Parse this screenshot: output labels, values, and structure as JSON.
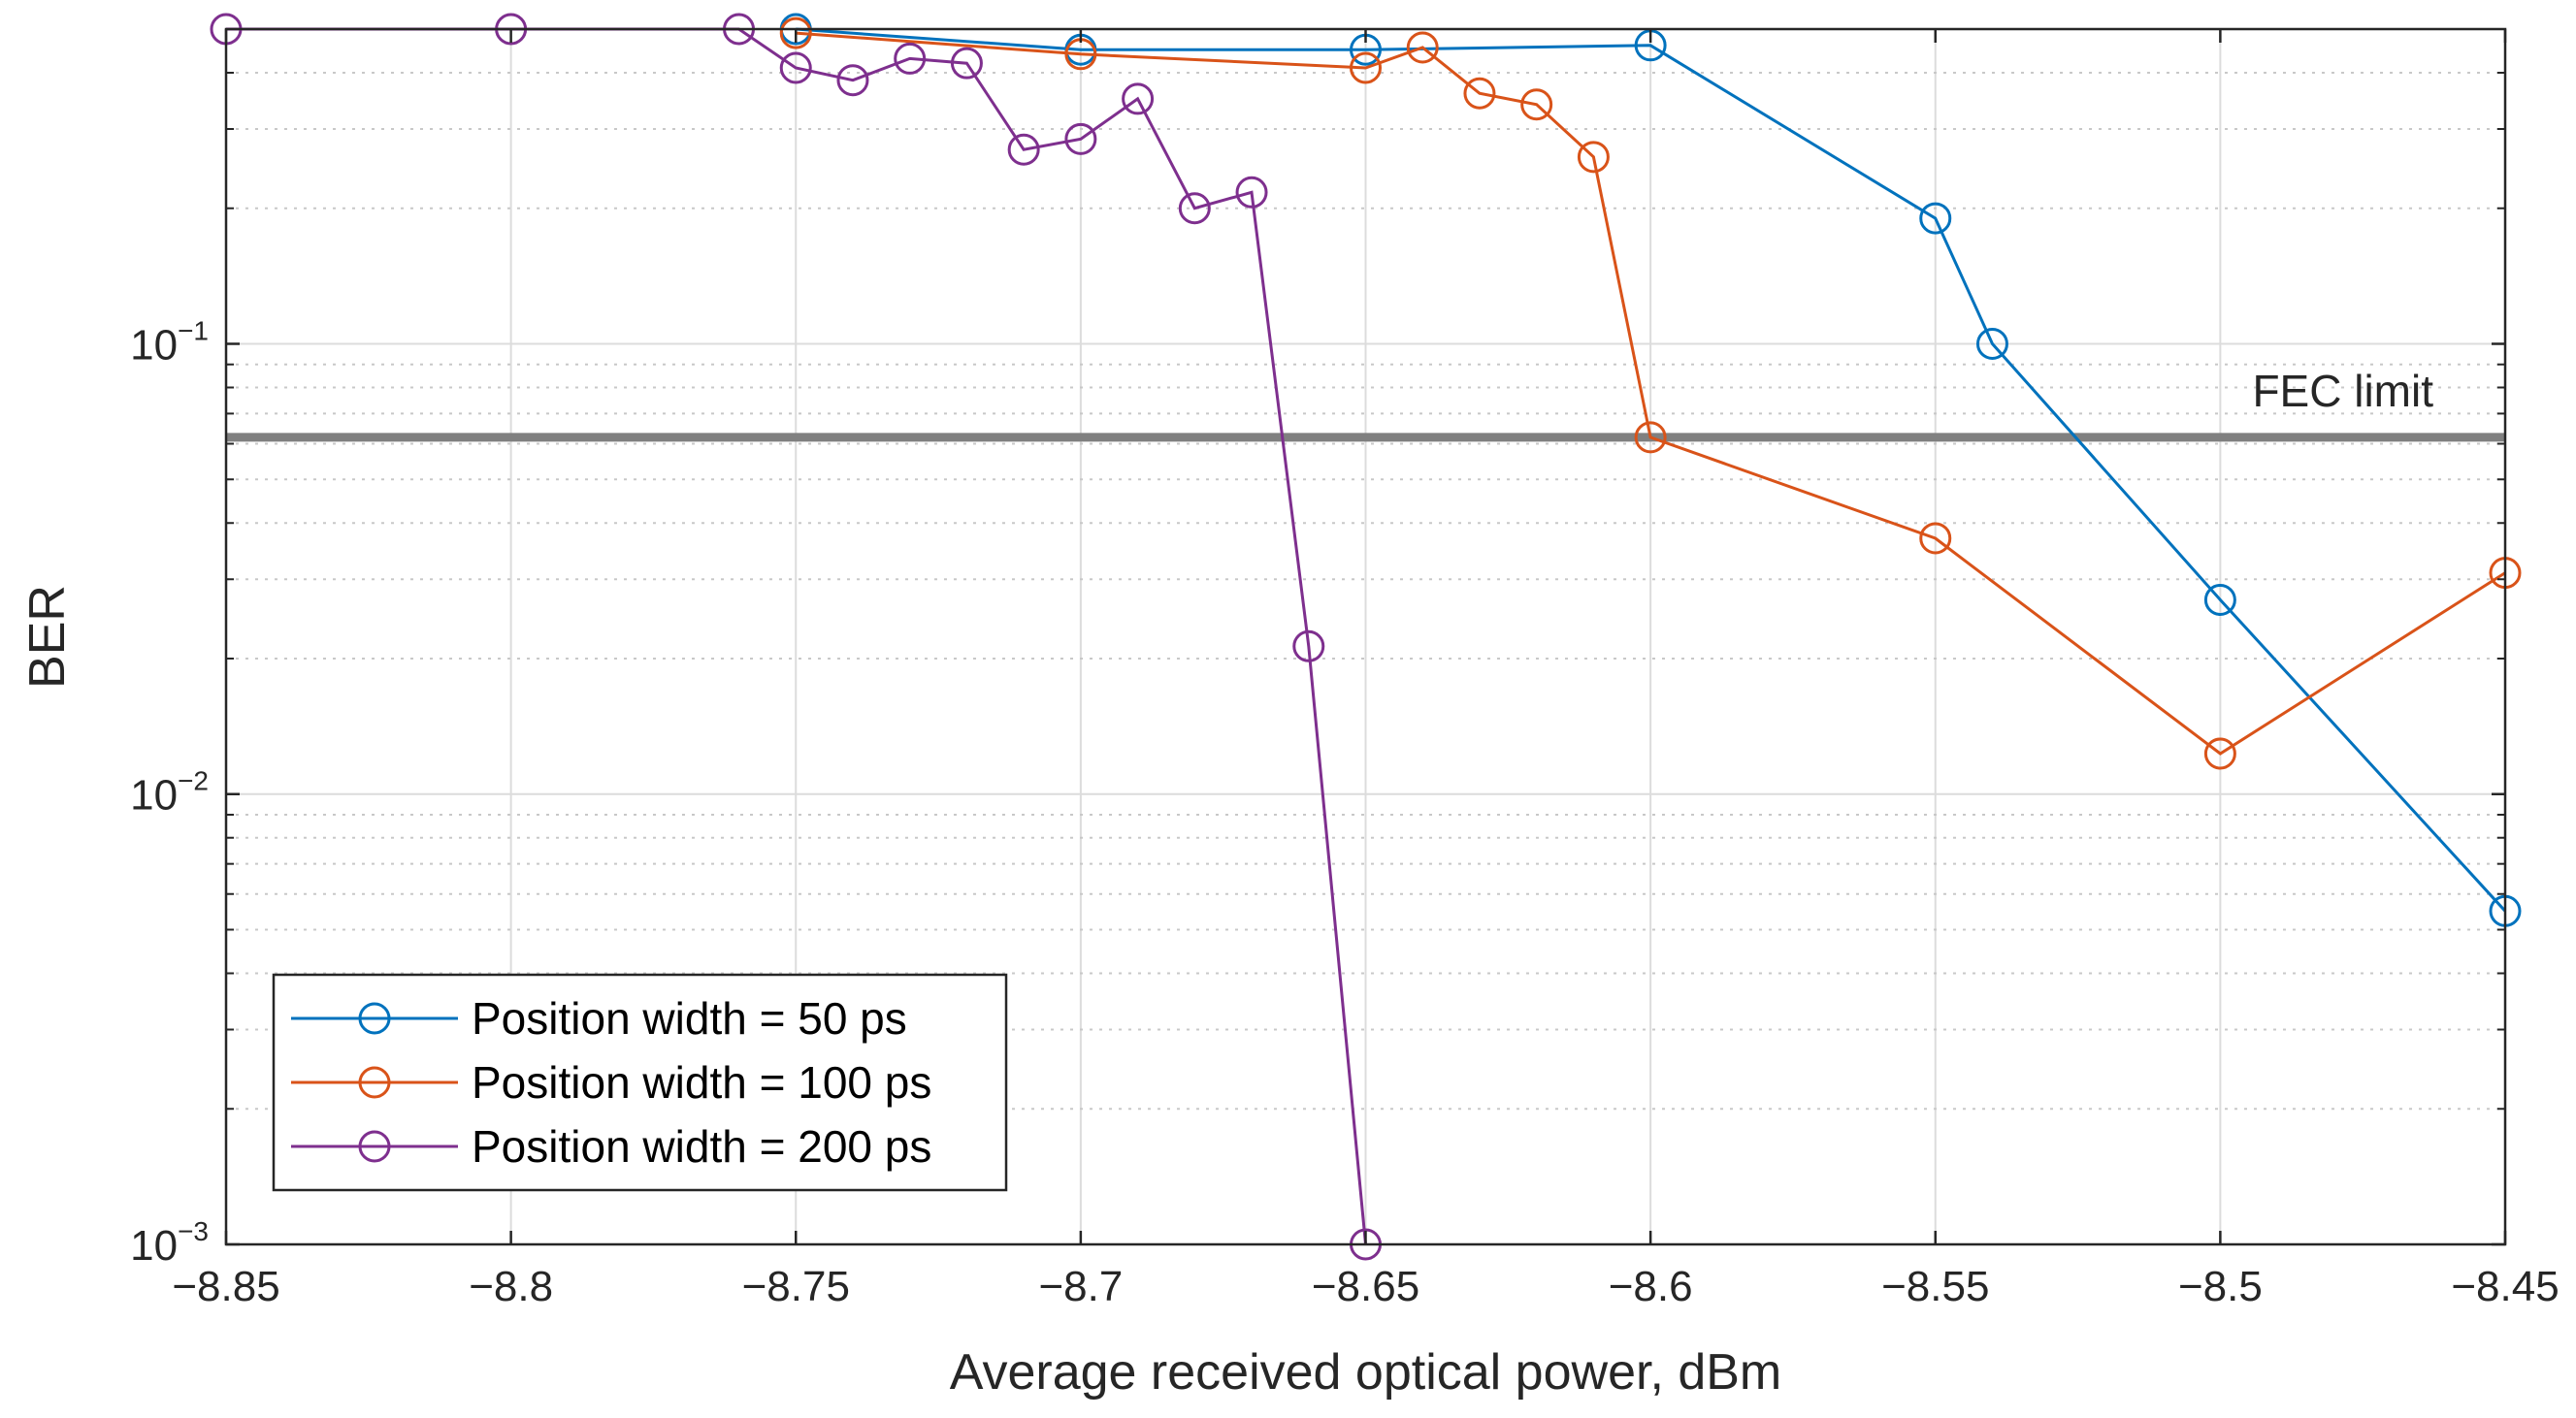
{
  "chart_data": {
    "type": "line",
    "title": "",
    "xlabel": "Average received optical power, dBm",
    "ylabel": "BER",
    "xlim": [
      -8.85,
      -8.45
    ],
    "ylim": [
      0.001,
      0.5
    ],
    "yscale": "log",
    "grid": true,
    "legend_position": "bottom-left",
    "x_ticks": [
      -8.85,
      -8.8,
      -8.75,
      -8.7,
      -8.65,
      -8.6,
      -8.55,
      -8.5,
      -8.45
    ],
    "x_tick_labels": [
      "−8.85",
      "−8.8",
      "−8.75",
      "−8.7",
      "−8.65",
      "−8.6",
      "−8.55",
      "−8.5",
      "−8.45"
    ],
    "y_ticks": [
      0.1,
      0.01,
      0.001
    ],
    "y_tick_labels": [
      {
        "base": "10",
        "exp": "−1"
      },
      {
        "base": "10",
        "exp": "−2"
      },
      {
        "base": "10",
        "exp": "−3"
      }
    ],
    "fec_limit": {
      "value": 0.062,
      "label": "FEC limit",
      "color": "#808080"
    },
    "series": [
      {
        "name": "Position width = 50 ps",
        "color": "#0072BD",
        "x": [
          -8.75,
          -8.7,
          -8.65,
          -8.6,
          -8.55,
          -8.54,
          -8.5,
          -8.45
        ],
        "y": [
          0.5,
          0.45,
          0.45,
          0.46,
          0.19,
          0.1,
          0.027,
          0.0055
        ]
      },
      {
        "name": "Position width = 100 ps",
        "color": "#D95319",
        "x": [
          -8.75,
          -8.7,
          -8.65,
          -8.64,
          -8.63,
          -8.62,
          -8.61,
          -8.6,
          -8.55,
          -8.5,
          -8.45
        ],
        "y": [
          0.49,
          0.44,
          0.41,
          0.455,
          0.36,
          0.34,
          0.26,
          0.062,
          0.037,
          0.0123,
          0.031
        ]
      },
      {
        "name": "Position width = 200 ps",
        "color": "#7E2F8E",
        "x": [
          -8.85,
          -8.8,
          -8.76,
          -8.75,
          -8.74,
          -8.73,
          -8.72,
          -8.71,
          -8.7,
          -8.69,
          -8.68,
          -8.67,
          -8.66,
          -8.65
        ],
        "y": [
          0.5,
          0.5,
          0.5,
          0.41,
          0.385,
          0.43,
          0.42,
          0.27,
          0.285,
          0.35,
          0.2,
          0.217,
          0.0213,
          0.001
        ]
      }
    ]
  }
}
